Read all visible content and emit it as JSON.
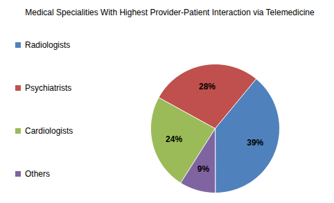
{
  "chart_data": {
    "type": "pie",
    "title": "Medical Specialities With Highest Provider-Patient Interaction via Telemedicine",
    "categories": [
      "Radiologists",
      "Psychiatrists",
      "Cardiologists",
      "Others"
    ],
    "values": [
      39,
      28,
      24,
      9
    ],
    "value_labels": [
      "39%",
      "28%",
      "24%",
      "9%"
    ],
    "colors": [
      "#4F81BD",
      "#C0504D",
      "#9BBB59",
      "#8064A2"
    ],
    "data_labels": true,
    "legend": "left"
  }
}
